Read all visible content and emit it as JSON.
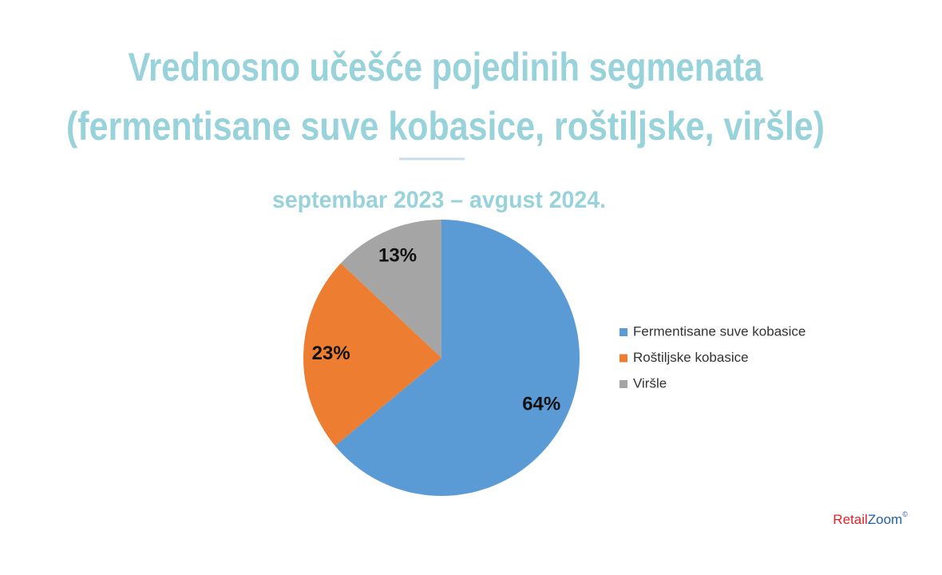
{
  "chart_data": {
    "type": "pie",
    "title": [
      "Vrednosno učešće pojedinih segmenata",
      "(fermentisane suve kobasice, roštiljske, viršle)"
    ],
    "subtitle": "septembar 2023 – avgust 2024.",
    "categories": [
      "Fermentisane suve kobasice",
      "Roštiljske kobasice",
      "Viršle"
    ],
    "values": [
      64,
      23,
      13
    ],
    "value_labels": [
      "64%",
      "23%",
      "13%"
    ],
    "colors": [
      "#5b9bd5",
      "#ed7d31",
      "#a5a5a5"
    ],
    "legend": "right"
  },
  "logo": {
    "retail": "Retail",
    "zoom": "Zoom",
    "symbol": "©"
  }
}
